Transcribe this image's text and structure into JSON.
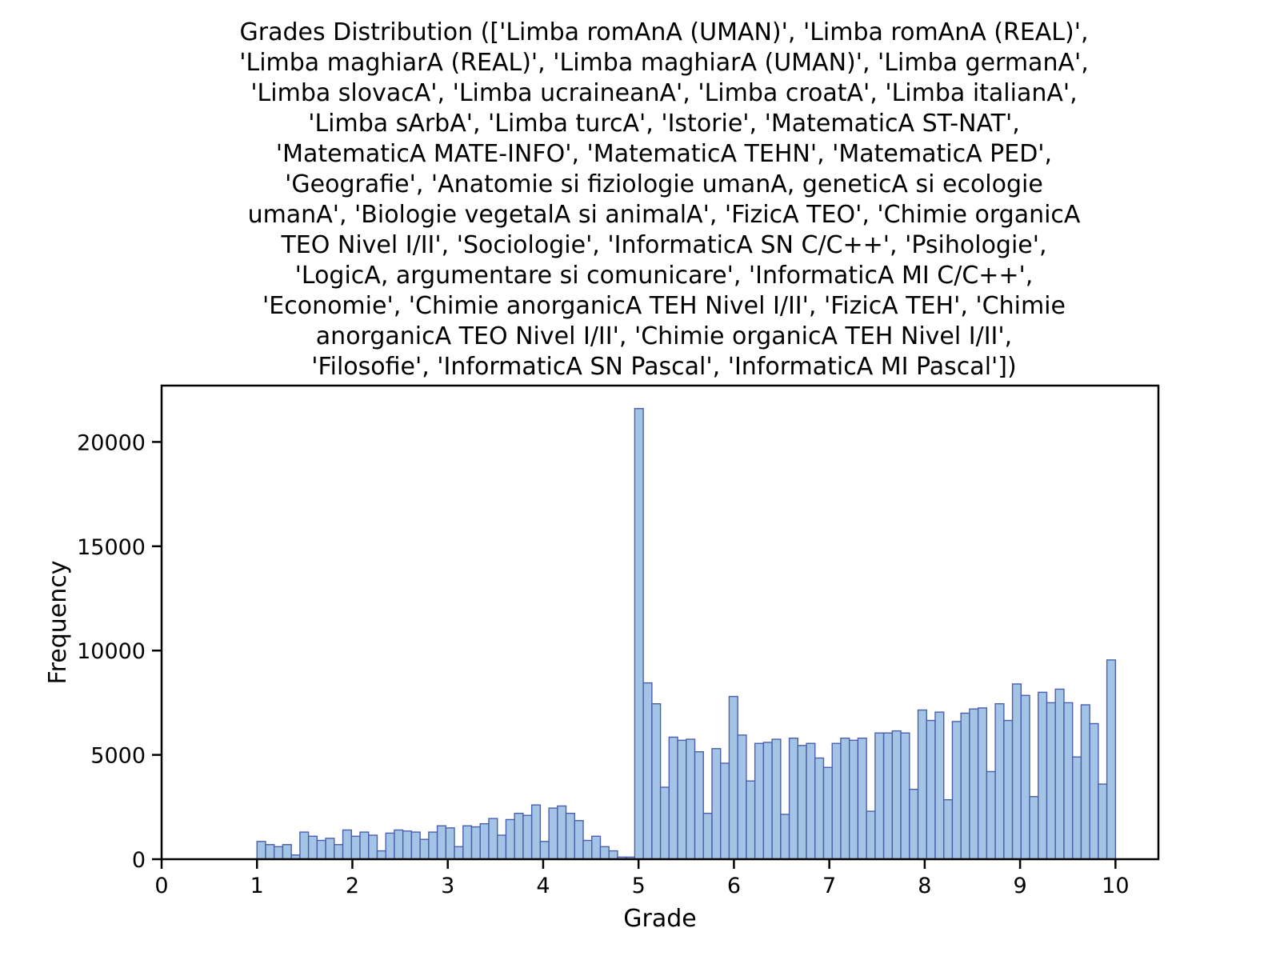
{
  "chart_data": {
    "type": "bar",
    "title_lines": [
      "Grades Distribution (['Limba romAnA (UMAN)', 'Limba romAnA (REAL)',",
      "'Limba maghiarA (REAL)', 'Limba maghiarA (UMAN)', 'Limba germanA',",
      "'Limba slovacA', 'Limba ucraineanA', 'Limba croatA', 'Limba italianA',",
      "'Limba sArbA', 'Limba turcA', 'Istorie', 'MatematicA ST-NAT',",
      "'MatematicA MATE-INFO', 'MatematicA TEHN', 'MatematicA PED',",
      "'Geografie', 'Anatomie si fiziologie umanA, geneticA si ecologie",
      "umanA', 'Biologie vegetalA si animalA', 'FizicA TEO', 'Chimie organicA",
      "TEO Nivel I/II', 'Sociologie', 'InformaticA SN C/C++', 'Psihologie',",
      "'LogicA, argumentare si comunicare', 'InformaticA MI C/C++',",
      "'Economie', 'Chimie anorganicA TEH Nivel I/II', 'FizicA TEH', 'Chimie",
      "anorganicA TEO Nivel I/II', 'Chimie organicA TEH Nivel I/II',",
      "'Filosofie', 'InformaticA SN Pascal', 'InformaticA MI Pascal'])"
    ],
    "xlabel": "Grade",
    "ylabel": "Frequency",
    "xlim": [
      0,
      10.45
    ],
    "ylim": [
      0,
      22700
    ],
    "xticks": [
      0,
      1,
      2,
      3,
      4,
      5,
      6,
      7,
      8,
      9,
      10
    ],
    "yticks": [
      0,
      5000,
      10000,
      15000,
      20000
    ],
    "bin_start": 1.0,
    "bin_width": 0.09,
    "values": [
      850,
      700,
      600,
      700,
      200,
      1300,
      1100,
      900,
      1000,
      700,
      1400,
      1100,
      1300,
      1150,
      400,
      1250,
      1400,
      1350,
      1300,
      950,
      1300,
      1600,
      1500,
      600,
      1600,
      1550,
      1700,
      1950,
      1150,
      1900,
      2200,
      2100,
      2600,
      850,
      2450,
      2550,
      2200,
      1850,
      900,
      1100,
      600,
      400,
      100,
      100,
      21600,
      8450,
      7450,
      3450,
      5850,
      5700,
      5750,
      5150,
      2200,
      5300,
      4600,
      7800,
      5950,
      3750,
      5550,
      5600,
      5750,
      2150,
      5800,
      5450,
      5550,
      4850,
      4400,
      5550,
      5800,
      5700,
      5800,
      2300,
      6050,
      6050,
      6150,
      6050,
      3350,
      7150,
      6650,
      7050,
      2850,
      6600,
      7000,
      7200,
      7250,
      4200,
      7450,
      6650,
      8400,
      7850,
      3000,
      8000,
      7500,
      8150,
      7500,
      4900,
      7400,
      6500,
      3600,
      9550
    ],
    "bar_fill": "#a3c4e4",
    "bar_edge": "#4b5fae",
    "axis_color": "#000000"
  }
}
